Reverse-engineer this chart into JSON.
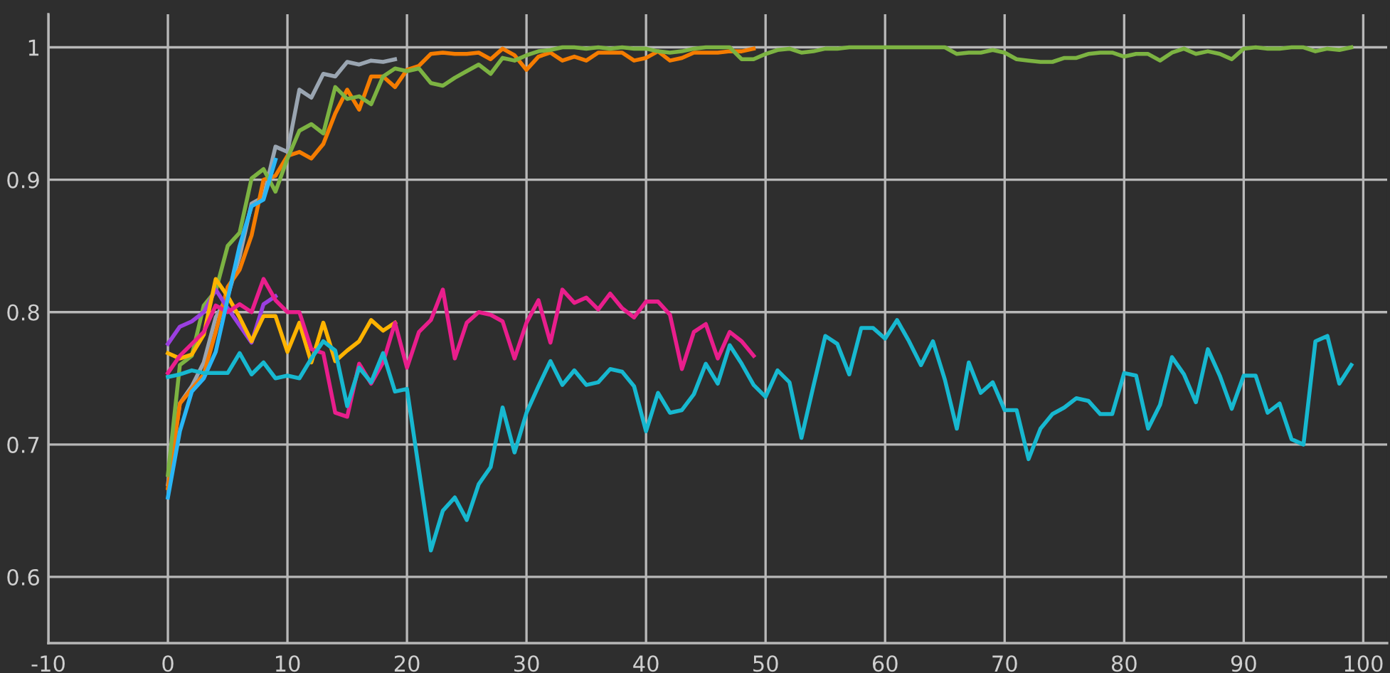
{
  "chart_data": {
    "type": "line",
    "xlim": [
      -10,
      102
    ],
    "ylim": [
      0.55,
      1.025
    ],
    "xticks": [
      {
        "value": -10,
        "label": "-10"
      },
      0,
      10,
      20,
      30,
      40,
      50,
      60,
      70,
      80,
      90,
      100
    ],
    "yticks": [
      0.6,
      0.7,
      0.8,
      0.9,
      1
    ],
    "grid": true,
    "marker": "none",
    "line_style": "solid",
    "series": [
      {
        "color": "#9aa5b1",
        "x": [
          0,
          1,
          2,
          3,
          4,
          5,
          6,
          7,
          8,
          9,
          10,
          11,
          12,
          13,
          14,
          15,
          16,
          17,
          18,
          19
        ],
        "values": [
          0.67,
          0.731,
          0.744,
          0.762,
          0.796,
          0.812,
          0.842,
          0.882,
          0.887,
          0.925,
          0.921,
          0.968,
          0.962,
          0.98,
          0.978,
          0.989,
          0.987,
          0.99,
          0.989,
          0.991
        ]
      },
      {
        "color": "#f57c00",
        "x": [
          0,
          1,
          2,
          3,
          4,
          5,
          6,
          7,
          8,
          9,
          10,
          11,
          12,
          13,
          14,
          15,
          16,
          17,
          18,
          19,
          20,
          21,
          22,
          23,
          24,
          25,
          26,
          27,
          28,
          29,
          30,
          31,
          32,
          33,
          34,
          35,
          36,
          37,
          38,
          39,
          40,
          41,
          42,
          43,
          44,
          45,
          46,
          47,
          48,
          49
        ],
        "values": [
          0.667,
          0.731,
          0.742,
          0.753,
          0.785,
          0.819,
          0.832,
          0.858,
          0.9,
          0.903,
          0.918,
          0.921,
          0.916,
          0.927,
          0.95,
          0.968,
          0.953,
          0.978,
          0.978,
          0.97,
          0.983,
          0.986,
          0.995,
          0.996,
          0.995,
          0.995,
          0.996,
          0.991,
          0.999,
          0.994,
          0.983,
          0.993,
          0.996,
          0.99,
          0.993,
          0.99,
          0.996,
          0.996,
          0.996,
          0.99,
          0.992,
          0.997,
          0.99,
          0.992,
          0.996,
          0.996,
          0.996,
          0.997,
          0.997,
          0.999
        ]
      },
      {
        "color": "#7cb342",
        "x": [
          0,
          1,
          2,
          3,
          4,
          5,
          6,
          7,
          8,
          9,
          10,
          11,
          12,
          13,
          14,
          15,
          16,
          17,
          18,
          19,
          20,
          21,
          22,
          23,
          24,
          25,
          26,
          27,
          28,
          29,
          30,
          31,
          32,
          33,
          34,
          35,
          36,
          37,
          38,
          39,
          40,
          41,
          42,
          43,
          44,
          45,
          46,
          47,
          48,
          49,
          50,
          51,
          52,
          53,
          54,
          55,
          56,
          57,
          58,
          59,
          60,
          61,
          62,
          63,
          64,
          65,
          66,
          67,
          68,
          69,
          70,
          71,
          72,
          73,
          74,
          75,
          76,
          77,
          78,
          79,
          80,
          81,
          82,
          83,
          84,
          85,
          86,
          87,
          88,
          89,
          90,
          91,
          92,
          93,
          94,
          95,
          96,
          97,
          98,
          99
        ],
        "values": [
          0.677,
          0.76,
          0.767,
          0.805,
          0.816,
          0.85,
          0.86,
          0.901,
          0.908,
          0.891,
          0.916,
          0.937,
          0.942,
          0.935,
          0.97,
          0.961,
          0.963,
          0.957,
          0.978,
          0.984,
          0.982,
          0.984,
          0.973,
          0.971,
          0.977,
          0.982,
          0.987,
          0.98,
          0.992,
          0.99,
          0.994,
          0.997,
          0.998,
          1.0,
          1.0,
          0.999,
          1.0,
          0.999,
          1.0,
          0.999,
          0.999,
          0.997,
          0.996,
          0.997,
          0.999,
          1.0,
          1.0,
          1.0,
          0.991,
          0.991,
          0.995,
          0.998,
          0.999,
          0.996,
          0.997,
          0.999,
          0.999,
          1.0,
          1.0,
          1.0,
          1.0,
          1.0,
          1.0,
          1.0,
          1.0,
          1.0,
          0.995,
          0.996,
          0.996,
          0.998,
          0.996,
          0.991,
          0.99,
          0.989,
          0.989,
          0.992,
          0.992,
          0.995,
          0.996,
          0.996,
          0.993,
          0.995,
          0.995,
          0.99,
          0.996,
          0.999,
          0.995,
          0.997,
          0.995,
          0.991,
          0.999,
          1.0,
          0.999,
          0.999,
          1.0,
          1.0,
          0.997,
          0.999,
          0.998,
          1.0
        ]
      },
      {
        "color": "#9b3fe0",
        "x": [
          0,
          1,
          2,
          3,
          4,
          5,
          6,
          7,
          8,
          9
        ],
        "values": [
          0.776,
          0.789,
          0.793,
          0.8,
          0.817,
          0.803,
          0.79,
          0.777,
          0.806,
          0.812
        ]
      },
      {
        "color": "#ffb300",
        "x": [
          0,
          1,
          2,
          3,
          4,
          5,
          6,
          7,
          8,
          9,
          10,
          11,
          12,
          13,
          14,
          15,
          16,
          17,
          18,
          19
        ],
        "values": [
          0.769,
          0.765,
          0.768,
          0.783,
          0.825,
          0.812,
          0.796,
          0.778,
          0.797,
          0.797,
          0.77,
          0.792,
          0.762,
          0.792,
          0.763,
          0.771,
          0.778,
          0.794,
          0.786,
          0.792
        ]
      },
      {
        "color": "#e91e8c",
        "x": [
          0,
          1,
          2,
          3,
          4,
          5,
          6,
          7,
          8,
          9,
          10,
          11,
          12,
          13,
          14,
          15,
          16,
          17,
          18,
          19,
          20,
          21,
          22,
          23,
          24,
          25,
          26,
          27,
          28,
          29,
          30,
          31,
          32,
          33,
          34,
          35,
          36,
          37,
          38,
          39,
          40,
          41,
          42,
          43,
          44,
          45,
          46,
          47,
          48,
          49
        ],
        "values": [
          0.754,
          0.767,
          0.776,
          0.785,
          0.805,
          0.8,
          0.806,
          0.8,
          0.825,
          0.809,
          0.8,
          0.8,
          0.772,
          0.769,
          0.724,
          0.721,
          0.761,
          0.746,
          0.762,
          0.792,
          0.758,
          0.785,
          0.794,
          0.817,
          0.765,
          0.792,
          0.8,
          0.798,
          0.793,
          0.765,
          0.792,
          0.809,
          0.777,
          0.817,
          0.807,
          0.811,
          0.802,
          0.814,
          0.803,
          0.796,
          0.808,
          0.808,
          0.798,
          0.757,
          0.785,
          0.791,
          0.765,
          0.785,
          0.778,
          0.767
        ]
      },
      {
        "color": "#29b6f6",
        "x": [
          0,
          1,
          2,
          3,
          4,
          5,
          6,
          7,
          8,
          9
        ],
        "values": [
          0.66,
          0.71,
          0.74,
          0.75,
          0.77,
          0.81,
          0.85,
          0.88,
          0.885,
          0.915
        ]
      },
      {
        "color": "#17b8d0",
        "x": [
          0,
          1,
          2,
          3,
          4,
          5,
          6,
          7,
          8,
          9,
          10,
          11,
          12,
          13,
          14,
          15,
          16,
          17,
          18,
          19,
          20,
          21,
          22,
          23,
          24,
          25,
          26,
          27,
          28,
          29,
          30,
          31,
          32,
          33,
          34,
          35,
          36,
          37,
          38,
          39,
          40,
          41,
          42,
          43,
          44,
          45,
          46,
          47,
          48,
          49,
          50,
          51,
          52,
          53,
          54,
          55,
          56,
          57,
          58,
          59,
          60,
          61,
          62,
          63,
          64,
          65,
          66,
          67,
          68,
          69,
          70,
          71,
          72,
          73,
          74,
          75,
          76,
          77,
          78,
          79,
          80,
          81,
          82,
          83,
          84,
          85,
          86,
          87,
          88,
          89,
          90,
          91,
          92,
          93,
          94,
          95,
          96,
          97,
          98,
          99
        ],
        "values": [
          0.751,
          0.753,
          0.756,
          0.754,
          0.754,
          0.754,
          0.769,
          0.753,
          0.762,
          0.75,
          0.752,
          0.75,
          0.765,
          0.778,
          0.771,
          0.729,
          0.758,
          0.747,
          0.769,
          0.74,
          0.742,
          0.681,
          0.62,
          0.65,
          0.66,
          0.643,
          0.67,
          0.683,
          0.728,
          0.694,
          0.724,
          0.744,
          0.763,
          0.745,
          0.756,
          0.745,
          0.747,
          0.757,
          0.755,
          0.744,
          0.71,
          0.739,
          0.724,
          0.726,
          0.738,
          0.761,
          0.746,
          0.775,
          0.761,
          0.745,
          0.736,
          0.756,
          0.747,
          0.705,
          0.744,
          0.782,
          0.776,
          0.753,
          0.788,
          0.788,
          0.78,
          0.794,
          0.778,
          0.76,
          0.778,
          0.749,
          0.712,
          0.762,
          0.739,
          0.747,
          0.726,
          0.726,
          0.689,
          0.712,
          0.723,
          0.728,
          0.735,
          0.733,
          0.723,
          0.723,
          0.754,
          0.752,
          0.712,
          0.73,
          0.766,
          0.753,
          0.732,
          0.772,
          0.752,
          0.727,
          0.752,
          0.752,
          0.724,
          0.731,
          0.704,
          0.7,
          0.778,
          0.782,
          0.746,
          0.76
        ]
      }
    ]
  }
}
